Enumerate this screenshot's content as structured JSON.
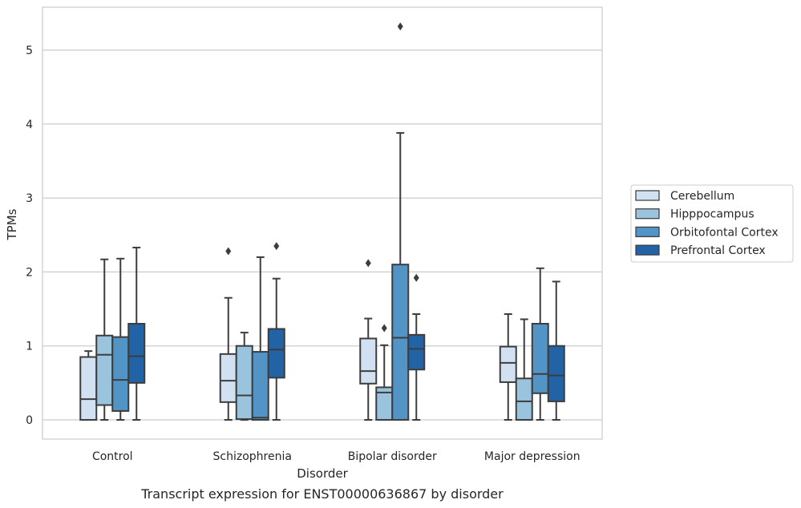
{
  "chart_data": {
    "type": "box",
    "xlabel": "Disorder",
    "ylabel": "TPMs",
    "caption": "Transcript expression for ENST00000636867 by disorder",
    "ylim": [
      -0.25,
      5.6
    ],
    "yticks": [
      0,
      1,
      2,
      3,
      4,
      5
    ],
    "grid": "horizontal",
    "legend_position": "right",
    "categories": [
      "Control",
      "Schizophrenia",
      "Bipolar disorder",
      "Major depression"
    ],
    "series": [
      {
        "name": "Cerebellum",
        "color": "#d2e1f1",
        "boxes": [
          {
            "whislo": 0,
            "q1": 0,
            "med": 0.28,
            "q3": 0.85,
            "whishi": 0.93,
            "fliers": []
          },
          {
            "whislo": 0,
            "q1": 0.24,
            "med": 0.53,
            "q3": 0.89,
            "whishi": 1.65,
            "fliers": [
              2.28
            ]
          },
          {
            "whislo": 0,
            "q1": 0.49,
            "med": 0.66,
            "q3": 1.1,
            "whishi": 1.37,
            "fliers": [
              2.12
            ]
          },
          {
            "whislo": 0,
            "q1": 0.51,
            "med": 0.77,
            "q3": 0.99,
            "whishi": 1.43,
            "fliers": []
          }
        ]
      },
      {
        "name": "Hipppocampus",
        "color": "#9ac3dd",
        "boxes": [
          {
            "whislo": 0,
            "q1": 0.2,
            "med": 0.88,
            "q3": 1.14,
            "whishi": 2.17,
            "fliers": []
          },
          {
            "whislo": 0,
            "q1": 0.01,
            "med": 0.33,
            "q3": 1.0,
            "whishi": 1.18,
            "fliers": []
          },
          {
            "whislo": 0,
            "q1": 0,
            "med": 0.37,
            "q3": 0.44,
            "whishi": 1.01,
            "fliers": [
              1.24
            ]
          },
          {
            "whislo": 0,
            "q1": 0,
            "med": 0.25,
            "q3": 0.56,
            "whishi": 1.36,
            "fliers": []
          }
        ]
      },
      {
        "name": "Orbitofontal Cortex",
        "color": "#5294c6",
        "boxes": [
          {
            "whislo": 0,
            "q1": 0.12,
            "med": 0.54,
            "q3": 1.12,
            "whishi": 2.18,
            "fliers": []
          },
          {
            "whislo": 0,
            "q1": 0,
            "med": 0.03,
            "q3": 0.92,
            "whishi": 2.2,
            "fliers": []
          },
          {
            "whislo": 0,
            "q1": 0,
            "med": 1.11,
            "q3": 2.1,
            "whishi": 3.88,
            "fliers": [
              5.32
            ]
          },
          {
            "whislo": 0,
            "q1": 0.36,
            "med": 0.62,
            "q3": 1.3,
            "whishi": 2.05,
            "fliers": []
          }
        ]
      },
      {
        "name": "Prefrontal Cortex",
        "color": "#2163a5",
        "boxes": [
          {
            "whislo": 0,
            "q1": 0.5,
            "med": 0.86,
            "q3": 1.3,
            "whishi": 2.33,
            "fliers": []
          },
          {
            "whislo": 0,
            "q1": 0.57,
            "med": 0.95,
            "q3": 1.23,
            "whishi": 1.91,
            "fliers": [
              2.35
            ]
          },
          {
            "whislo": 0,
            "q1": 0.68,
            "med": 0.96,
            "q3": 1.15,
            "whishi": 1.43,
            "fliers": [
              1.92
            ]
          },
          {
            "whislo": 0,
            "q1": 0.25,
            "med": 0.6,
            "q3": 1.0,
            "whishi": 1.87,
            "fliers": []
          }
        ]
      }
    ]
  }
}
